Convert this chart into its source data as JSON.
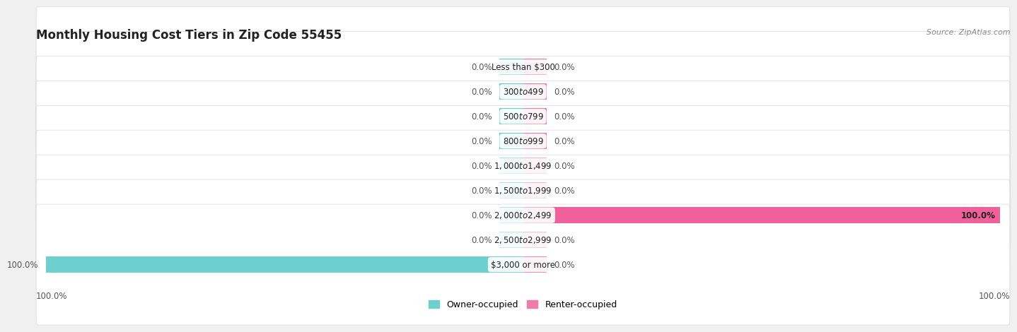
{
  "title": "Monthly Housing Cost Tiers in Zip Code 55455",
  "source": "Source: ZipAtlas.com",
  "categories": [
    "Less than $300",
    "$300 to $499",
    "$500 to $799",
    "$800 to $999",
    "$1,000 to $1,499",
    "$1,500 to $1,999",
    "$2,000 to $2,499",
    "$2,500 to $2,999",
    "$3,000 or more"
  ],
  "owner_values": [
    0.0,
    0.0,
    0.0,
    0.0,
    0.0,
    0.0,
    0.0,
    0.0,
    100.0
  ],
  "renter_values": [
    0.0,
    0.0,
    0.0,
    0.0,
    0.0,
    0.0,
    100.0,
    0.0,
    0.0
  ],
  "owner_color": "#6ecfcf",
  "renter_color": "#f07aaa",
  "renter_color_full": "#f0609a",
  "owner_label": "Owner-occupied",
  "renter_label": "Renter-occupied",
  "bg_color": "#f0f0f0",
  "row_bg_color": "#ffffff",
  "stub_size": 5.0,
  "max_val": 100,
  "owner_axis_label": "100.0%",
  "renter_axis_label": "100.0%",
  "title_fontsize": 12,
  "source_fontsize": 8,
  "label_fontsize": 8.5,
  "cat_fontsize": 8.5
}
